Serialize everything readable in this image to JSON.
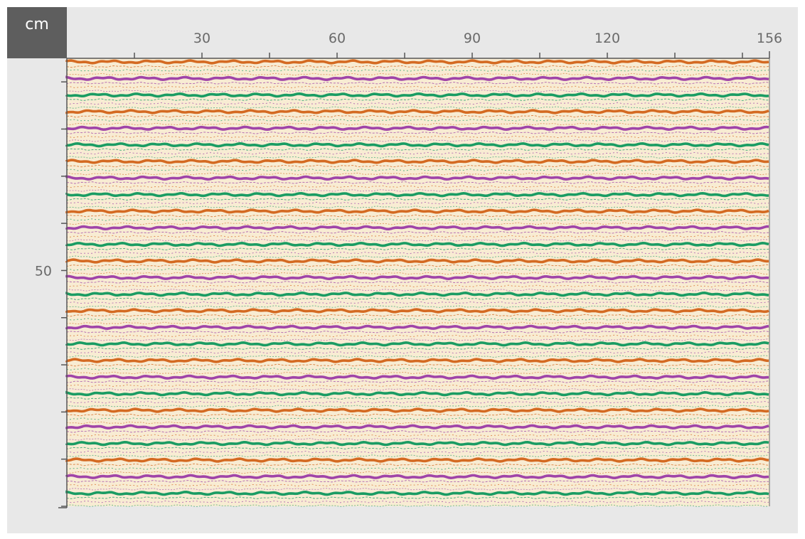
{
  "ruler": {
    "unit": "cm",
    "top_labels": [
      {
        "value": 30,
        "text": "30"
      },
      {
        "value": 60,
        "text": "60"
      },
      {
        "value": 90,
        "text": "90"
      },
      {
        "value": 120,
        "text": "120"
      },
      {
        "value": 156,
        "text": "156"
      }
    ],
    "left_labels": [
      {
        "value": 50,
        "text": "50"
      }
    ],
    "x_range": [
      0,
      156
    ],
    "y_range": [
      0,
      95
    ]
  },
  "fabric": {
    "background_color": "#f8ecd3",
    "stripe_colors": [
      "#d46a22",
      "#a044a8",
      "#1a9c63"
    ],
    "stripe_count": 27
  },
  "colors": {
    "frame": "#e8e8e8",
    "unit_tab": "#5e5e5e",
    "tick": "#555555"
  }
}
